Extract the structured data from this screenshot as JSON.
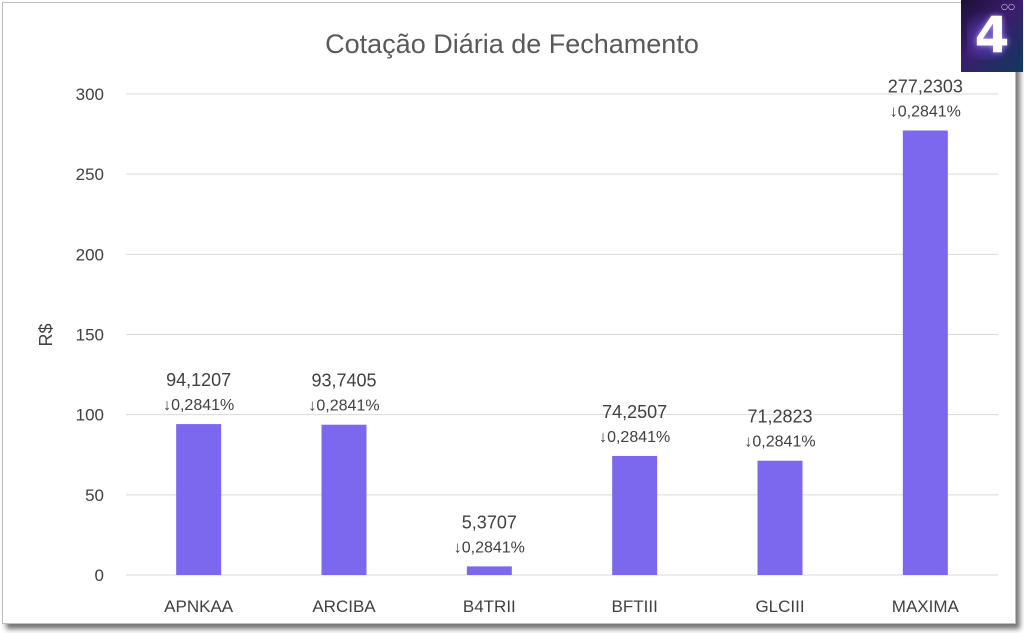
{
  "chart_data": {
    "type": "bar",
    "title": "Cotação Diária de Fechamento",
    "xlabel": "",
    "ylabel": "R$",
    "ylim": [
      0,
      300
    ],
    "yticks": [
      0,
      50,
      100,
      150,
      200,
      250,
      300
    ],
    "grid": true,
    "categories": [
      "APNKAA",
      "ARCIBA",
      "B4TRII",
      "BFTIII",
      "GLCIII",
      "MAXIMA"
    ],
    "values": [
      94.1207,
      93.7405,
      5.3707,
      74.2507,
      71.2823,
      277.2303
    ],
    "value_labels": [
      "94,1207",
      "93,7405",
      "5,3707",
      "74,2507",
      "71,2823",
      "277,2303"
    ],
    "change_labels": [
      "↓0,2841%",
      "↓0,2841%",
      "↓0,2841%",
      "↓0,2841%",
      "↓0,2841%",
      "↓0,2841%"
    ],
    "bar_color": "#7b68ee"
  },
  "logo": {
    "text": "4",
    "superscript": "○○"
  }
}
